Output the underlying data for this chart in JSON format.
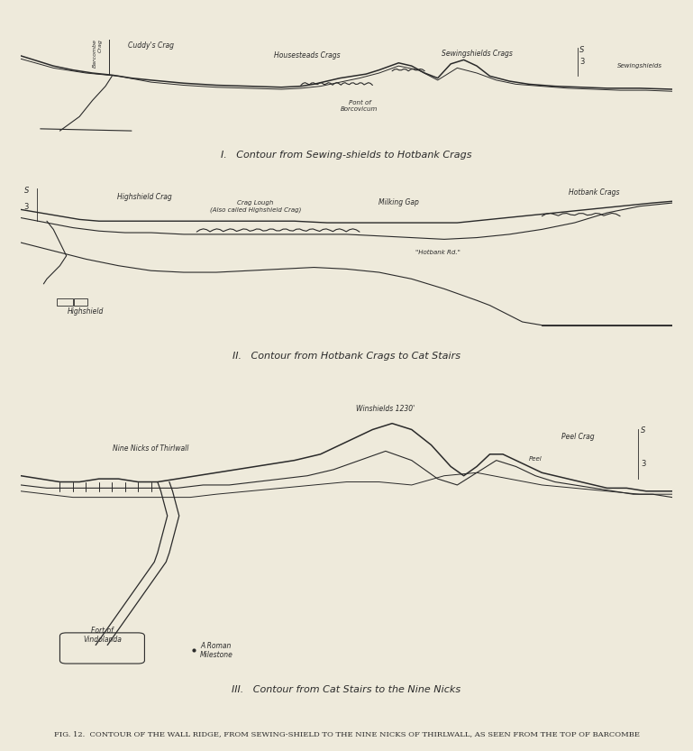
{
  "bg_color": "#eeeadb",
  "line_color": "#2a2a2a",
  "fig_title": "FIG. 12.  CONTOUR OF THE WALL RIDGE, FROM SEWING-SHIELD TO THE NINE NICKS OF THIRLWALL, AS SEEN FROM THE TOP OF BARCOMBE",
  "panel1_caption": "I.   Contour from Sewing-shields to Hotbank Crags",
  "panel2_caption": "II.   Contour from Hotbank Crags to Cat Stairs",
  "panel3_caption": "III.   Contour from Cat Stairs to the Nine Nicks"
}
